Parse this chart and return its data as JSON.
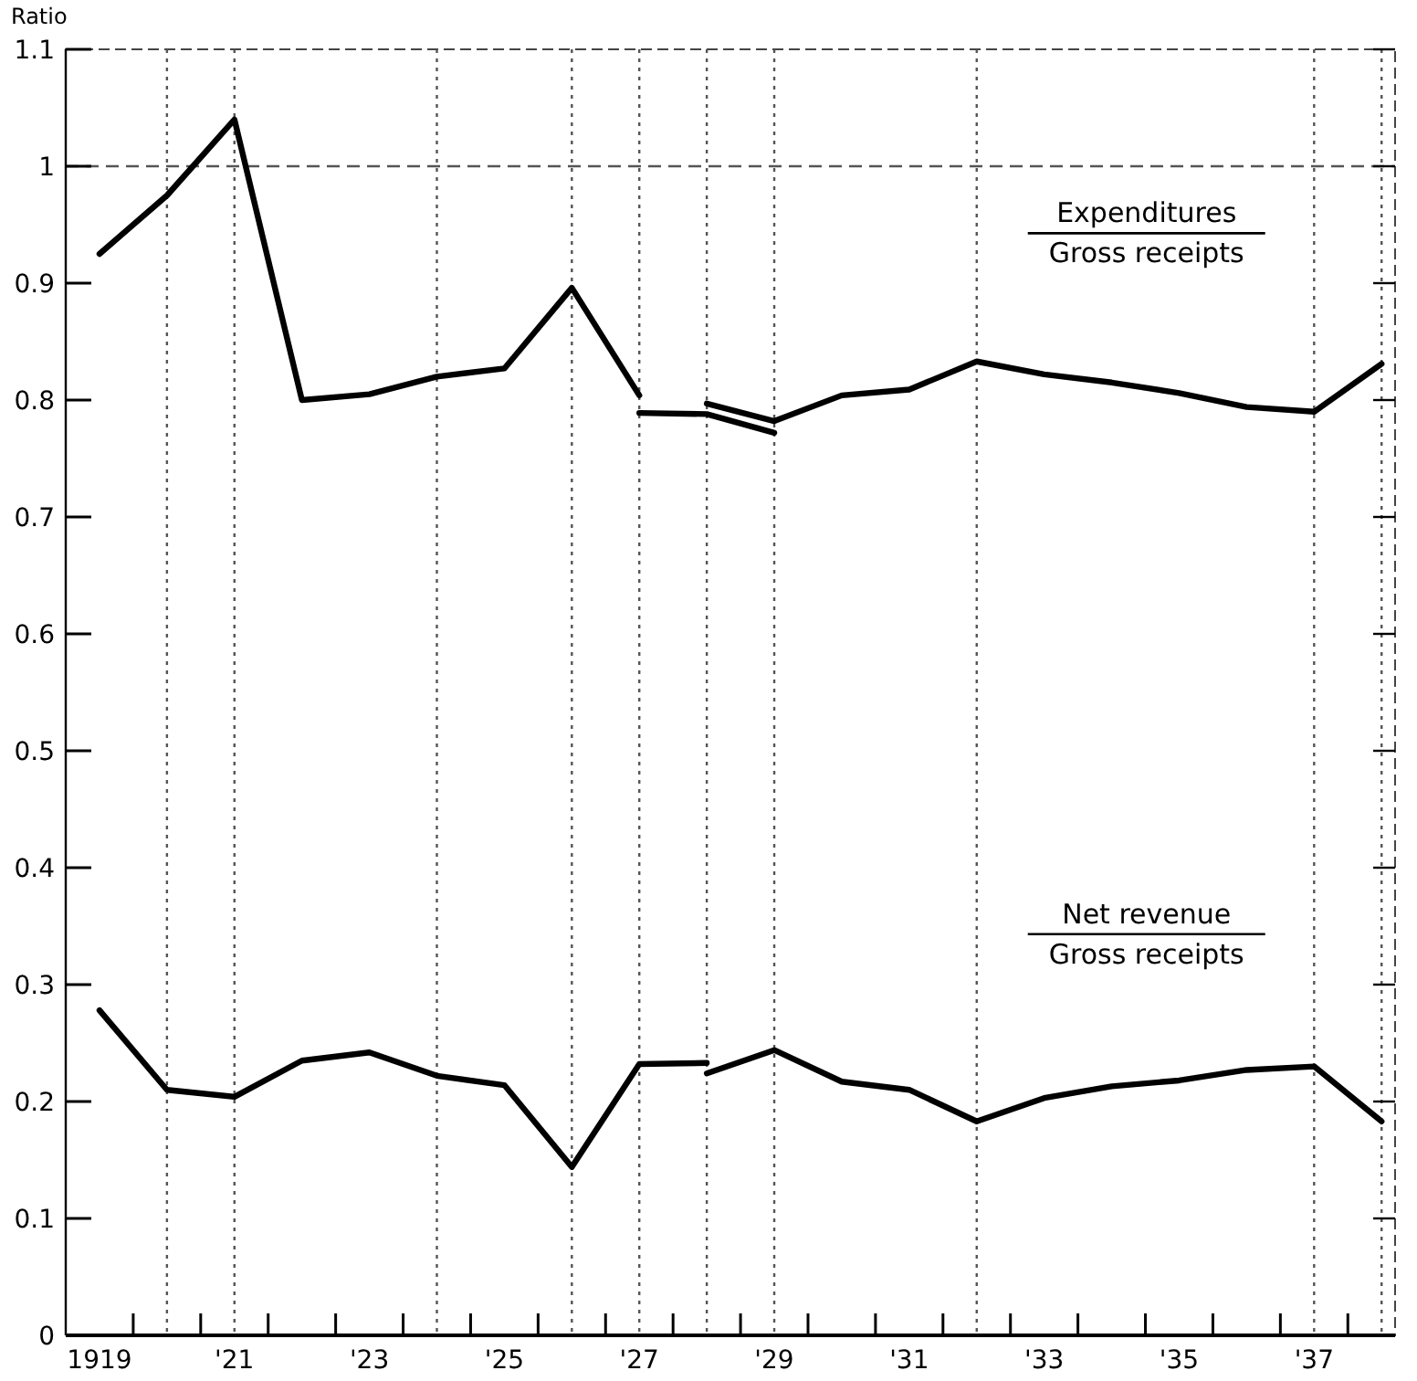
{
  "chart_data": {
    "type": "line",
    "ylabel": "Ratio",
    "xlim": [
      1918.5,
      1938.2
    ],
    "ylim": [
      0,
      1.1
    ],
    "xticks": [
      {
        "value": 1919,
        "label": "1919"
      },
      {
        "value": 1921,
        "label": "'21"
      },
      {
        "value": 1923,
        "label": "'23"
      },
      {
        "value": 1925,
        "label": "'25"
      },
      {
        "value": 1927,
        "label": "'27"
      },
      {
        "value": 1929,
        "label": "'29"
      },
      {
        "value": 1931,
        "label": "'31"
      },
      {
        "value": 1933,
        "label": "'33"
      },
      {
        "value": 1935,
        "label": "'35"
      },
      {
        "value": 1937,
        "label": "'37"
      },
      {
        "value": 1919.5,
        "label": null
      },
      {
        "value": 1920.5,
        "label": null
      },
      {
        "value": 1921.5,
        "label": null
      },
      {
        "value": 1922.5,
        "label": null
      },
      {
        "value": 1923.5,
        "label": null
      },
      {
        "value": 1924.5,
        "label": null
      },
      {
        "value": 1925.5,
        "label": null
      },
      {
        "value": 1926.5,
        "label": null
      },
      {
        "value": 1927.5,
        "label": null
      },
      {
        "value": 1928.5,
        "label": null
      },
      {
        "value": 1929.5,
        "label": null
      },
      {
        "value": 1930.5,
        "label": null
      },
      {
        "value": 1931.5,
        "label": null
      },
      {
        "value": 1932.5,
        "label": null
      },
      {
        "value": 1933.5,
        "label": null
      },
      {
        "value": 1934.5,
        "label": null
      },
      {
        "value": 1935.5,
        "label": null
      },
      {
        "value": 1936.5,
        "label": null
      },
      {
        "value": 1937.5,
        "label": null
      }
    ],
    "yticks": [
      0,
      0.1,
      0.2,
      0.3,
      0.4,
      0.5,
      0.6,
      0.7,
      0.8,
      0.9,
      1.0,
      1.1
    ],
    "grid": false,
    "marker": "none",
    "line_style": "solid",
    "series": [
      {
        "color": "#000000",
        "x": [
          1919,
          1920,
          1921,
          1922,
          1923,
          1924,
          1925,
          1926,
          1927
        ],
        "values": [
          0.925,
          0.975,
          1.04,
          0.8,
          0.805,
          0.82,
          0.827,
          0.896,
          0.804
        ]
      },
      {
        "color": "#000000",
        "x": [
          1927,
          1928,
          1929
        ],
        "values": [
          0.789,
          0.788,
          0.772
        ]
      },
      {
        "color": "#000000",
        "x": [
          1928,
          1929,
          1930,
          1931,
          1932,
          1933,
          1934,
          1935,
          1936,
          1937,
          1938
        ],
        "values": [
          0.797,
          0.782,
          0.804,
          0.809,
          0.833,
          0.822,
          0.815,
          0.806,
          0.794,
          0.79,
          0.831
        ]
      },
      {
        "color": "#000000",
        "x": [
          1919,
          1920,
          1921,
          1922,
          1923,
          1924,
          1925,
          1926,
          1927,
          1928
        ],
        "values": [
          0.278,
          0.21,
          0.204,
          0.235,
          0.242,
          0.222,
          0.214,
          0.144,
          0.232,
          0.233
        ]
      },
      {
        "color": "#000000",
        "x": [
          1928,
          1929,
          1930,
          1931,
          1932,
          1933,
          1934,
          1935,
          1936,
          1937,
          1938
        ],
        "values": [
          0.224,
          0.244,
          0.217,
          0.21,
          0.183,
          0.203,
          0.213,
          0.218,
          0.227,
          0.23,
          0.183
        ]
      }
    ],
    "ref_lines": [
      {
        "axis": "y",
        "value": 1.0,
        "color": "#555555",
        "line_style": "dashed"
      },
      {
        "axis": "x",
        "value": 1920,
        "color": "#555555",
        "line_style": "dotted"
      },
      {
        "axis": "x",
        "value": 1921,
        "color": "#555555",
        "line_style": "dotted"
      },
      {
        "axis": "x",
        "value": 1924,
        "color": "#555555",
        "line_style": "dotted"
      },
      {
        "axis": "x",
        "value": 1926,
        "color": "#555555",
        "line_style": "dotted"
      },
      {
        "axis": "x",
        "value": 1927,
        "color": "#555555",
        "line_style": "dotted"
      },
      {
        "axis": "x",
        "value": 1928,
        "color": "#555555",
        "line_style": "dotted"
      },
      {
        "axis": "x",
        "value": 1929,
        "color": "#555555",
        "line_style": "dotted"
      },
      {
        "axis": "x",
        "value": 1932,
        "color": "#555555",
        "line_style": "dotted"
      },
      {
        "axis": "x",
        "value": 1937,
        "color": "#555555",
        "line_style": "dotted"
      },
      {
        "axis": "x",
        "value": 1938,
        "color": "#555555",
        "line_style": "dotted"
      }
    ],
    "annotations": [
      "Expenditures",
      "Gross receipts",
      "Net revenue",
      "Gross receipts"
    ]
  }
}
